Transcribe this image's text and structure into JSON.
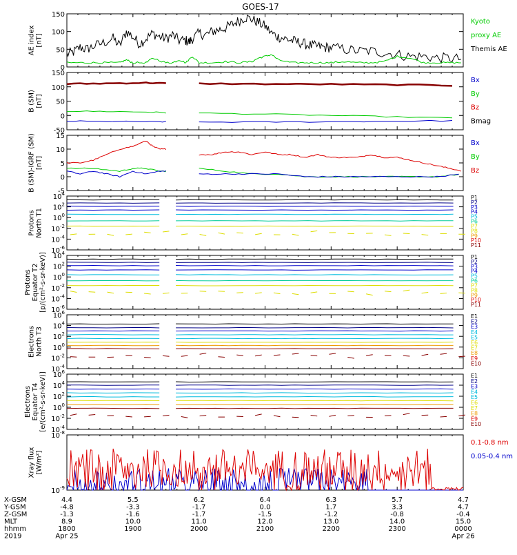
{
  "title": "GOES-17",
  "colors": {
    "black": "#000000",
    "blue": "#0000cc",
    "green": "#00cc00",
    "red": "#dd0000",
    "darkred": "#880000",
    "navy": "#000088",
    "cyan": "#00bbdd",
    "teal": "#00cc99",
    "yellow": "#dddd00",
    "orange": "#ee9900"
  },
  "chart_data": [
    {
      "type": "line",
      "ylabel": [
        "AE index",
        "[nT]"
      ],
      "ylim": [
        0,
        150
      ],
      "yticks": [
        "0",
        "50",
        "100",
        "150"
      ],
      "legend": [
        {
          "label": "Kyoto",
          "color": "green"
        },
        {
          "label": "proxy AE",
          "color": "green"
        },
        {
          "label": "Themis AE",
          "color": "black"
        }
      ],
      "series": [
        {
          "color": "black",
          "x": [
            0,
            10,
            20,
            30,
            40,
            55,
            70,
            80,
            90,
            100,
            110,
            120,
            130,
            140,
            150,
            160,
            170,
            180,
            185,
            190,
            200,
            210,
            220,
            230,
            240,
            250,
            260,
            270,
            280,
            290,
            300,
            310,
            320,
            330,
            340,
            350,
            360,
            370,
            380,
            390,
            400,
            420,
            440,
            460,
            480,
            500,
            520,
            540,
            560,
            580,
            600
          ],
          "y": [
            35,
            42,
            55,
            50,
            58,
            68,
            80,
            60,
            100,
            85,
            65,
            80,
            95,
            85,
            80,
            90,
            75,
            75,
            70,
            80,
            95,
            90,
            100,
            105,
            110,
            120,
            130,
            140,
            135,
            125,
            115,
            95,
            85,
            80,
            75,
            70,
            65,
            60,
            58,
            55,
            55,
            50,
            45,
            45,
            40,
            35,
            30,
            30,
            25,
            25,
            22
          ]
        },
        {
          "color": "green",
          "x": [
            0,
            20,
            40,
            60,
            80,
            90,
            100,
            120,
            130,
            150,
            160,
            170,
            180,
            190,
            200,
            220,
            240,
            260,
            280,
            290,
            300,
            310,
            320,
            340,
            360,
            380,
            400,
            420,
            440,
            460,
            480,
            500,
            520,
            540,
            560,
            580,
            600
          ],
          "y": [
            12,
            12,
            12,
            12,
            12,
            20,
            12,
            12,
            25,
            12,
            12,
            20,
            12,
            30,
            12,
            12,
            15,
            12,
            15,
            25,
            30,
            35,
            20,
            12,
            12,
            12,
            12,
            15,
            12,
            12,
            15,
            30,
            25,
            12,
            12,
            12,
            12
          ]
        }
      ]
    },
    {
      "type": "line",
      "ylabel": [
        "B (SM)",
        "[nT]"
      ],
      "ylim": [
        -50,
        150
      ],
      "yticks": [
        "-50",
        "0",
        "50",
        "100",
        "150"
      ],
      "legend": [
        {
          "label": "Bx",
          "color": "blue"
        },
        {
          "label": "By",
          "color": "green"
        },
        {
          "label": "Bz",
          "color": "red"
        },
        {
          "label": "Bmag",
          "color": "black"
        }
      ],
      "gap": [
        150,
        200
      ],
      "series": [
        {
          "color": "darkred",
          "x": [
            0,
            60,
            120,
            150,
            200,
            300,
            400,
            500,
            600
          ],
          "y": [
            110,
            112,
            114,
            112,
            111,
            110,
            109,
            107,
            104
          ]
        },
        {
          "color": "green",
          "x": [
            0,
            60,
            120,
            150,
            200,
            300,
            400,
            500,
            600
          ],
          "y": [
            15,
            14,
            12,
            10,
            8,
            5,
            0,
            -5,
            -10
          ]
        },
        {
          "color": "blue",
          "x": [
            0,
            60,
            120,
            150,
            200,
            300,
            400,
            500,
            600
          ],
          "y": [
            -20,
            -21,
            -22,
            -22,
            -23,
            -23,
            -22,
            -20,
            -18
          ]
        }
      ]
    },
    {
      "type": "line",
      "ylabel": [
        "B (SM)-IGRF (SM)",
        "[nT]"
      ],
      "ylim": [
        -5,
        15
      ],
      "yticks": [
        "-5",
        "0",
        "5",
        "10",
        "15"
      ],
      "legend": [
        {
          "label": "Bx",
          "color": "blue"
        },
        {
          "label": "By",
          "color": "green"
        },
        {
          "label": "Bz",
          "color": "red"
        }
      ],
      "gap": [
        150,
        200
      ],
      "series": [
        {
          "color": "red",
          "x": [
            0,
            20,
            40,
            60,
            80,
            100,
            120,
            130,
            140,
            150,
            200,
            220,
            240,
            260,
            280,
            300,
            320,
            340,
            360,
            380,
            400,
            420,
            440,
            460,
            480,
            500,
            520,
            540,
            560,
            580,
            600
          ],
          "y": [
            5,
            5,
            6,
            8,
            10,
            11,
            13,
            11,
            10,
            10,
            8,
            8,
            9,
            9,
            8,
            9,
            8,
            8,
            7,
            8,
            7,
            7,
            7,
            8,
            7,
            7,
            6,
            5,
            4,
            3,
            2
          ]
        },
        {
          "color": "green",
          "x": [
            0,
            40,
            80,
            100,
            120,
            140,
            150,
            200,
            240,
            280,
            320,
            360,
            400,
            440,
            480,
            520,
            560,
            600
          ],
          "y": [
            3,
            3,
            2,
            3,
            3,
            2,
            2,
            3,
            2,
            1,
            1,
            0,
            0,
            0,
            0,
            0,
            0,
            1
          ]
        },
        {
          "color": "blue",
          "x": [
            0,
            20,
            40,
            60,
            80,
            100,
            120,
            140,
            150,
            200,
            240,
            280,
            320,
            360,
            400,
            440,
            480,
            520,
            560,
            600
          ],
          "y": [
            2,
            1,
            2,
            1,
            0,
            2,
            1,
            2,
            2,
            1,
            1,
            1,
            1,
            0,
            0,
            0,
            0,
            0,
            0,
            1
          ]
        }
      ]
    },
    {
      "type": "line",
      "ylabel": [
        "Protons",
        "North T1"
      ],
      "log": true,
      "ylim": [
        -6,
        4
      ],
      "yticks": [
        "10^-6",
        "10^-4",
        "10^-2",
        "10^0",
        "10^2",
        "10^4"
      ],
      "legend": [
        {
          "label": "P1",
          "color": "black"
        },
        {
          "label": "P2",
          "color": "navy"
        },
        {
          "label": "P3",
          "color": "blue"
        },
        {
          "label": "P4",
          "color": "blue"
        },
        {
          "label": "P5",
          "color": "cyan"
        },
        {
          "label": "P6",
          "color": "teal"
        },
        {
          "label": "P7",
          "color": "yellow"
        },
        {
          "label": "P8",
          "color": "yellow"
        },
        {
          "label": "P9",
          "color": "orange"
        },
        {
          "label": "P10",
          "color": "red"
        },
        {
          "label": "P11",
          "color": "darkred"
        }
      ],
      "gap": [
        150,
        165
      ],
      "levels": [
        3.3,
        2.7,
        2.1,
        1.4,
        0.6,
        -0.6,
        -1.6
      ],
      "level_colors": [
        "black",
        "navy",
        "blue",
        "blue",
        "cyan",
        "teal",
        "yellow"
      ]
    },
    {
      "type": "line",
      "ylabel": [
        "Protons",
        "Equator T2",
        "[p/(cm²-s-sr-keV)]"
      ],
      "log": true,
      "ylim": [
        -6,
        4
      ],
      "yticks": [
        "10^-6",
        "10^-4",
        "10^-2",
        "10^0",
        "10^2",
        "10^4"
      ],
      "legend": [
        {
          "label": "P1",
          "color": "black"
        },
        {
          "label": "P2",
          "color": "navy"
        },
        {
          "label": "P3",
          "color": "blue"
        },
        {
          "label": "P4",
          "color": "blue"
        },
        {
          "label": "P5",
          "color": "cyan"
        },
        {
          "label": "P6",
          "color": "teal"
        },
        {
          "label": "P7",
          "color": "yellow"
        },
        {
          "label": "P8",
          "color": "yellow"
        },
        {
          "label": "P9",
          "color": "orange"
        },
        {
          "label": "P10",
          "color": "red"
        },
        {
          "label": "P11",
          "color": "darkred"
        }
      ],
      "gap": [
        150,
        165
      ],
      "levels": [
        3.3,
        2.7,
        2.1,
        1.3,
        0.4,
        -0.7,
        -1.6
      ],
      "level_colors": [
        "black",
        "navy",
        "blue",
        "blue",
        "cyan",
        "teal",
        "yellow"
      ]
    },
    {
      "type": "line",
      "ylabel": [
        "Electrons",
        "North T3"
      ],
      "log": true,
      "ylim": [
        -4,
        6
      ],
      "yticks": [
        "10^-4",
        "10^-2",
        "10^0",
        "10^2",
        "10^4",
        "10^6"
      ],
      "legend": [
        {
          "label": "E1",
          "color": "black"
        },
        {
          "label": "E2",
          "color": "navy"
        },
        {
          "label": "E3",
          "color": "blue"
        },
        {
          "label": "E4",
          "color": "cyan"
        },
        {
          "label": "E5",
          "color": "cyan"
        },
        {
          "label": "E6",
          "color": "yellow"
        },
        {
          "label": "E7",
          "color": "yellow"
        },
        {
          "label": "E8",
          "color": "orange"
        },
        {
          "label": "E9",
          "color": "red"
        },
        {
          "label": "E10",
          "color": "darkred"
        }
      ],
      "gap": [
        150,
        165
      ],
      "levels": [
        4.3,
        3.6,
        3.0,
        2.3,
        1.6,
        0.9,
        0.3,
        -0.3
      ],
      "level_colors": [
        "black",
        "navy",
        "blue",
        "cyan",
        "cyan",
        "yellow",
        "orange",
        "darkred"
      ]
    },
    {
      "type": "line",
      "ylabel": [
        "Electrons",
        "Equator T4",
        "[e/(cm²-s-sr-keV)]"
      ],
      "log": true,
      "ylim": [
        -4,
        6
      ],
      "yticks": [
        "10^-4",
        "10^-2",
        "10^0",
        "10^2",
        "10^4",
        "10^6"
      ],
      "legend": [
        {
          "label": "E1",
          "color": "black"
        },
        {
          "label": "E2",
          "color": "navy"
        },
        {
          "label": "E3",
          "color": "blue"
        },
        {
          "label": "E4",
          "color": "cyan"
        },
        {
          "label": "E5",
          "color": "cyan"
        },
        {
          "label": "E6",
          "color": "yellow"
        },
        {
          "label": "E7",
          "color": "yellow"
        },
        {
          "label": "E8",
          "color": "orange"
        },
        {
          "label": "E9",
          "color": "red"
        },
        {
          "label": "E10",
          "color": "darkred"
        }
      ],
      "gap": [
        150,
        165
      ],
      "levels": [
        4.6,
        4.0,
        3.3,
        2.6,
        1.9,
        1.2,
        0.5,
        -0.2
      ],
      "level_colors": [
        "black",
        "navy",
        "blue",
        "cyan",
        "cyan",
        "yellow",
        "orange",
        "darkred"
      ]
    },
    {
      "type": "line",
      "ylabel": [
        "Xray flux",
        "[W/m²]"
      ],
      "log": true,
      "ylim": [
        -9,
        -8
      ],
      "yticks": [
        "10^-9",
        "10^-8"
      ],
      "legend": [
        {
          "label": "0.1-0.8 nm",
          "color": "red"
        },
        {
          "label": "0.05-0.4 nm",
          "color": "blue"
        }
      ]
    }
  ],
  "xaxis": {
    "row_labels": [
      "X-GSM",
      "Y-GSM",
      "Z-GSM",
      "MLT",
      "hhmm",
      "2019"
    ],
    "columns": [
      {
        "values": [
          "4.4",
          "-4.8",
          "-1.3",
          "8.9",
          "1800",
          "Apr 25"
        ]
      },
      {
        "values": [
          "5.5",
          "-3.3",
          "-1.6",
          "10.0",
          "1900",
          ""
        ]
      },
      {
        "values": [
          "6.2",
          "-1.7",
          "-1.7",
          "11.0",
          "2000",
          ""
        ]
      },
      {
        "values": [
          "6.4",
          "0.0",
          "-1.5",
          "12.0",
          "2100",
          ""
        ]
      },
      {
        "values": [
          "6.3",
          "1.7",
          "-1.2",
          "13.0",
          "2200",
          ""
        ]
      },
      {
        "values": [
          "5.7",
          "3.3",
          "-0.8",
          "14.0",
          "2300",
          ""
        ]
      },
      {
        "values": [
          "4.7",
          "4.7",
          "-0.4",
          "15.0",
          "0000",
          "Apr 26"
        ]
      }
    ]
  }
}
